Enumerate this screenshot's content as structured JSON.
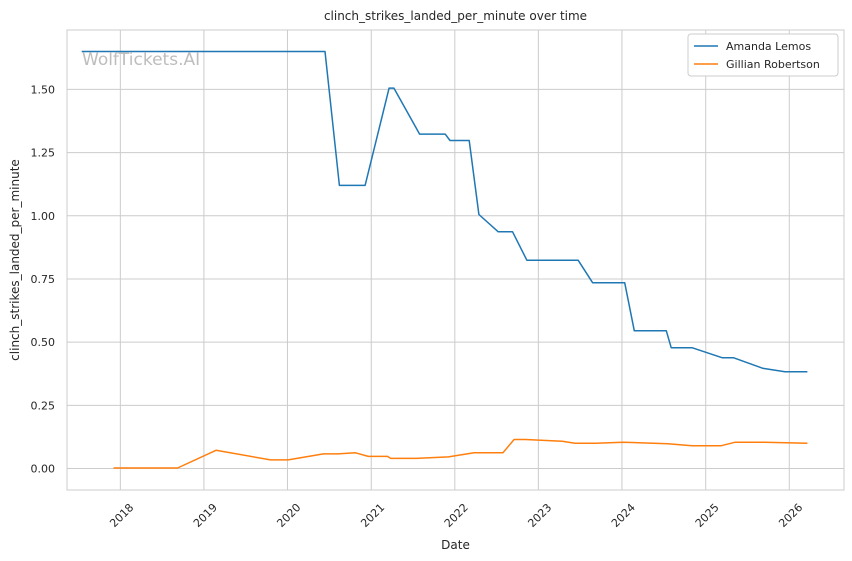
{
  "chart_data": {
    "type": "line",
    "title": "clinch_strikes_landed_per_minute over time",
    "xlabel": "Date",
    "ylabel": "clinch_strikes_landed_per_minute",
    "watermark": "WolfTickets.AI",
    "x_tick_labels": [
      "2018",
      "2019",
      "2020",
      "2021",
      "2022",
      "2023",
      "2024",
      "2025",
      "2026"
    ],
    "y_tick_labels": [
      "0.00",
      "0.25",
      "0.50",
      "0.75",
      "1.00",
      "1.25",
      "1.50"
    ],
    "y_ticks": [
      0,
      0.25,
      0.5,
      0.75,
      1.0,
      1.25,
      1.5
    ],
    "xlim": [
      "2017-05-13",
      "2026-08-28"
    ],
    "ylim": [
      -0.085,
      1.735
    ],
    "grid": true,
    "legend_position": "top-right",
    "series": [
      {
        "name": "Amanda Lemos",
        "color": "#1f77b4",
        "points": [
          [
            "2017-07-16",
            1.65
          ],
          [
            "2020-06-13",
            1.65
          ],
          [
            "2020-08-15",
            1.12
          ],
          [
            "2020-12-05",
            1.12
          ],
          [
            "2021-03-20",
            1.505
          ],
          [
            "2021-04-10",
            1.505
          ],
          [
            "2021-07-31",
            1.323
          ],
          [
            "2021-11-20",
            1.323
          ],
          [
            "2021-12-11",
            1.298
          ],
          [
            "2022-03-05",
            1.298
          ],
          [
            "2022-04-16",
            1.005
          ],
          [
            "2022-07-09",
            0.937
          ],
          [
            "2022-09-10",
            0.937
          ],
          [
            "2022-11-12",
            0.824
          ],
          [
            "2023-06-24",
            0.824
          ],
          [
            "2023-08-26",
            0.735
          ],
          [
            "2024-01-13",
            0.735
          ],
          [
            "2024-02-24",
            0.545
          ],
          [
            "2024-07-13",
            0.545
          ],
          [
            "2024-08-03",
            0.478
          ],
          [
            "2024-11-02",
            0.478
          ],
          [
            "2025-03-15",
            0.438
          ],
          [
            "2025-05-03",
            0.438
          ],
          [
            "2025-09-06",
            0.397
          ],
          [
            "2025-12-13",
            0.383
          ],
          [
            "2026-03-21",
            0.383
          ]
        ]
      },
      {
        "name": "Gillian Robertson",
        "color": "#ff7f0e",
        "points": [
          [
            "2017-12-02",
            0.002
          ],
          [
            "2018-09-08",
            0.002
          ],
          [
            "2019-02-23",
            0.072
          ],
          [
            "2019-10-19",
            0.034
          ],
          [
            "2020-01-04",
            0.034
          ],
          [
            "2020-06-06",
            0.058
          ],
          [
            "2020-08-08",
            0.058
          ],
          [
            "2020-10-24",
            0.062
          ],
          [
            "2020-12-19",
            0.048
          ],
          [
            "2021-03-13",
            0.048
          ],
          [
            "2021-03-27",
            0.04
          ],
          [
            "2021-07-17",
            0.04
          ],
          [
            "2021-12-04",
            0.046
          ],
          [
            "2022-03-26",
            0.062
          ],
          [
            "2022-07-30",
            0.062
          ],
          [
            "2022-09-17",
            0.115
          ],
          [
            "2022-11-05",
            0.115
          ],
          [
            "2023-04-15",
            0.108
          ],
          [
            "2023-06-10",
            0.1
          ],
          [
            "2023-09-09",
            0.1
          ],
          [
            "2024-01-06",
            0.104
          ],
          [
            "2024-07-20",
            0.098
          ],
          [
            "2024-11-02",
            0.09
          ],
          [
            "2025-03-08",
            0.09
          ],
          [
            "2025-05-10",
            0.104
          ],
          [
            "2025-09-13",
            0.104
          ],
          [
            "2026-03-21",
            0.1
          ]
        ]
      }
    ]
  }
}
